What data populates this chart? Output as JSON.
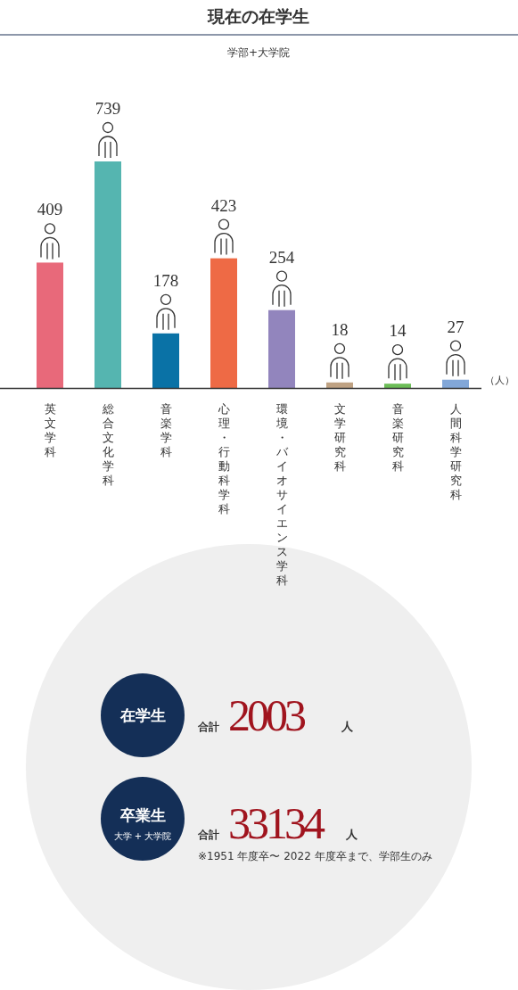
{
  "chart_data": [
    {
      "type": "bar",
      "title": "現在の在学生",
      "subtitle": "学部+大学院",
      "ylabel": "（人）",
      "categories": [
        "英文学科",
        "総合文化学科",
        "音楽学科",
        "心理・行動科学科",
        "環境・バイオサイエンス学科",
        "文学研究科",
        "音楽研究科",
        "人間科学研究科"
      ],
      "values": [
        409,
        739,
        178,
        423,
        254,
        18,
        14,
        27
      ],
      "colors": [
        "#e8697a",
        "#55b5b0",
        "#0a72a6",
        "#ee6a45",
        "#9285bd",
        "#bfa283",
        "#6cbd57",
        "#82a7d8"
      ],
      "data_labels": true
    },
    {
      "type": "other",
      "annotations": [
        "在学生",
        "合計",
        "2003",
        "人",
        "卒業生",
        "大学 + 大学院",
        "合計",
        "33134",
        "人",
        "※1951 年度卒〜 2022 年度卒まで、学部生のみ"
      ]
    }
  ]
}
